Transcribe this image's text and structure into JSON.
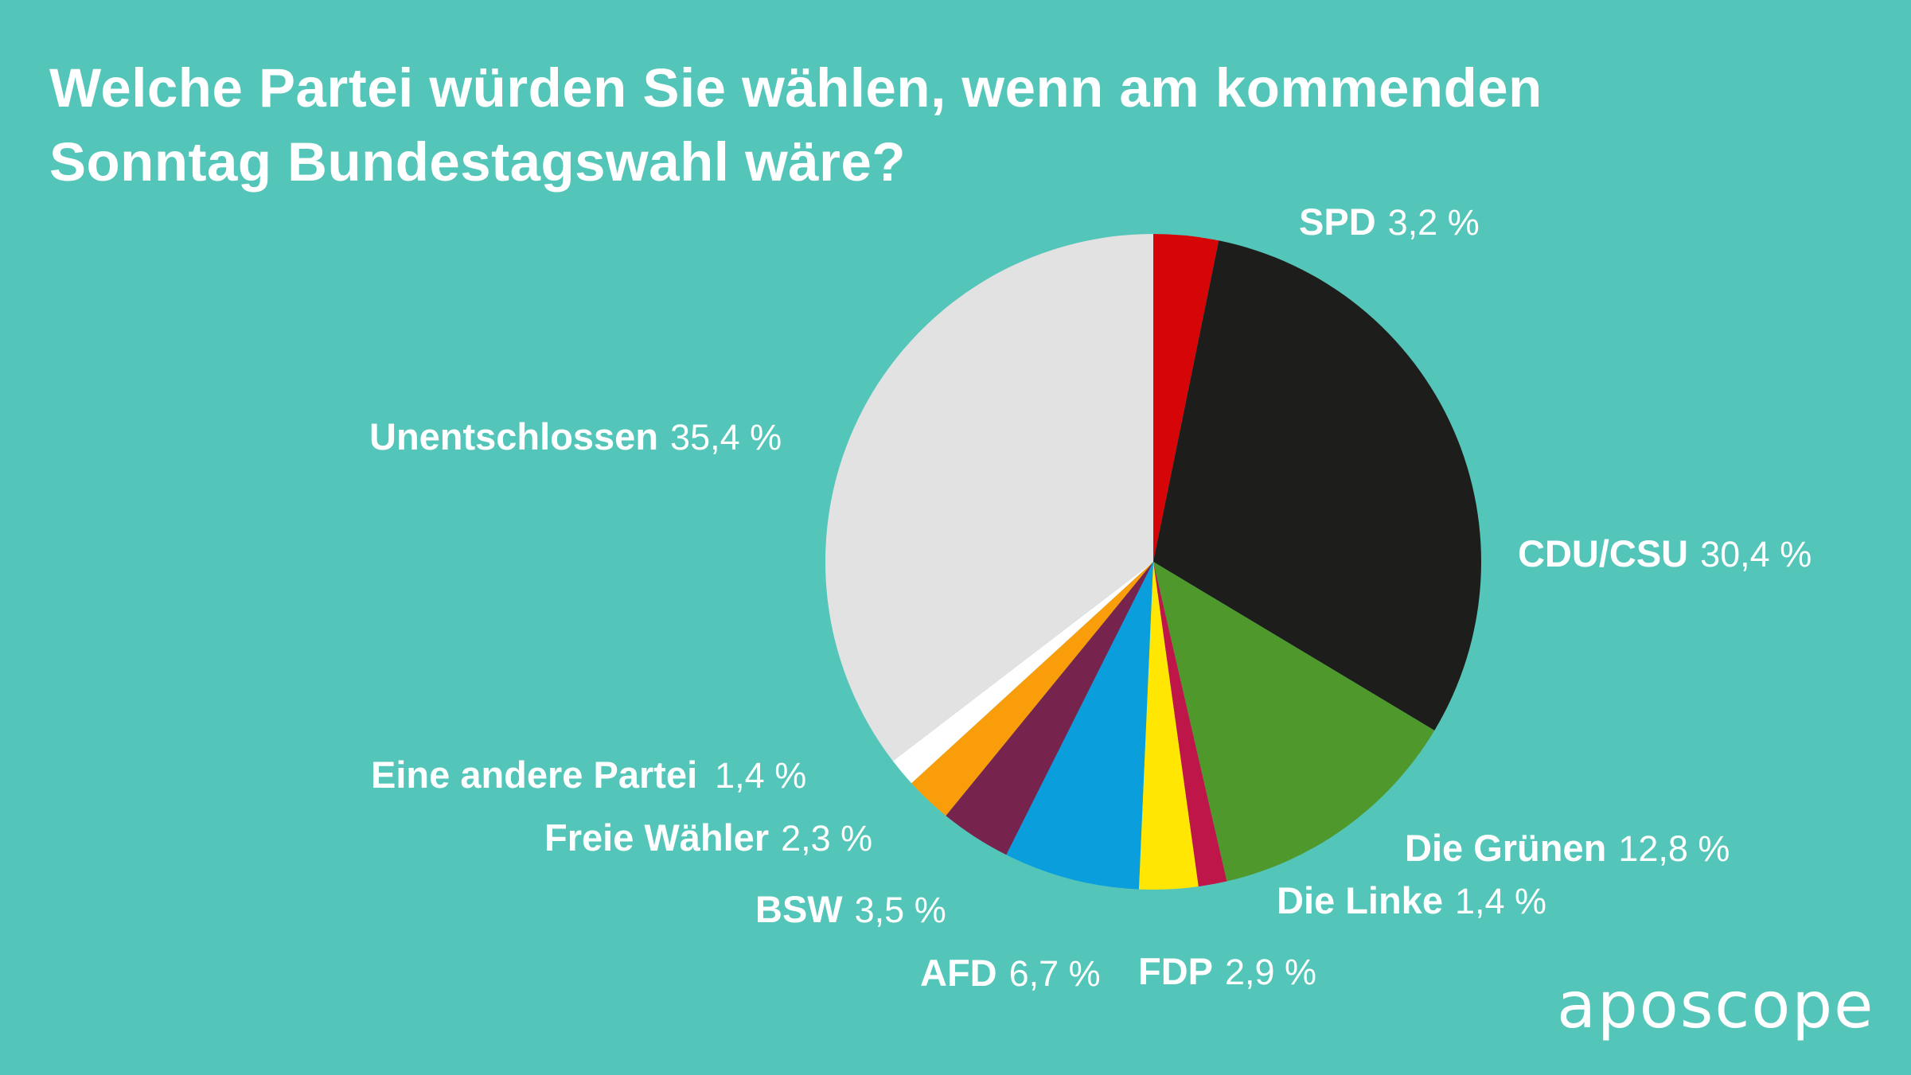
{
  "colors": {
    "background": "#54C5B9",
    "text": "#FFFFFF"
  },
  "brand": {
    "logo_text": "aposcope"
  },
  "chart_data": {
    "type": "pie",
    "title": "Welche Partei würden Sie wählen, wenn am kommenden Sonntag Bundestagswahl wäre?",
    "unit": "%",
    "total": 100,
    "start_angle_deg": 0,
    "direction": "clockwise",
    "legend_position": "labels-around-pie",
    "slices": [
      {
        "id": "spd",
        "label": "SPD",
        "value": 3.2,
        "display": "3,2 %",
        "color": "#D60507"
      },
      {
        "id": "cdu-csu",
        "label": "CDU/CSU",
        "value": 30.4,
        "display": "30,4 %",
        "color": "#1D1D1B"
      },
      {
        "id": "gruene",
        "label": "Die Grünen",
        "value": 12.8,
        "display": "12,8 %",
        "color": "#4F992C"
      },
      {
        "id": "linke",
        "label": "Die Linke",
        "value": 1.4,
        "display": "1,4 %",
        "color": "#BE1648"
      },
      {
        "id": "fdp",
        "label": "FDP",
        "value": 2.9,
        "display": "2,9 %",
        "color": "#FFE703"
      },
      {
        "id": "afd",
        "label": "AFD",
        "value": 6.7,
        "display": "6,7 %",
        "color": "#0A9EDC"
      },
      {
        "id": "bsw",
        "label": "BSW",
        "value": 3.5,
        "display": "3,5 %",
        "color": "#76234E"
      },
      {
        "id": "freie-waehler",
        "label": "Freie Wähler",
        "value": 2.3,
        "display": "2,3 %",
        "color": "#F99D0B"
      },
      {
        "id": "andere",
        "label": "Eine andere Partei",
        "value": 1.4,
        "display": "1,4 %",
        "color": "#FFFFFF"
      },
      {
        "id": "unentschlossen",
        "label": "Unentschlossen",
        "value": 35.4,
        "display": "35,4 %",
        "color": "#E2E2E3"
      }
    ]
  }
}
